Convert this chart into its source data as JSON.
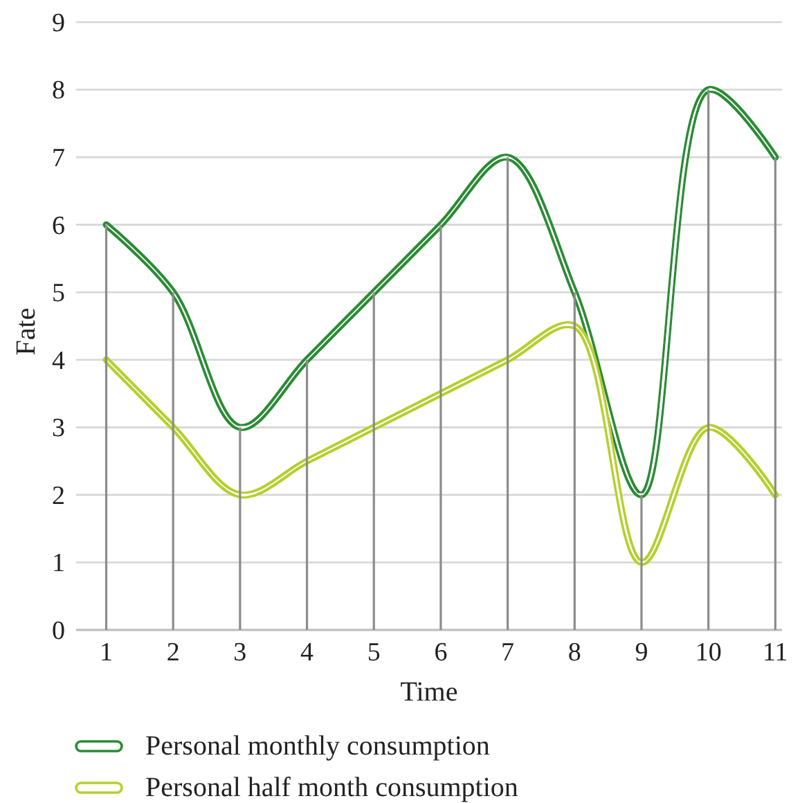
{
  "chart_data": {
    "type": "line",
    "xlabel": "Time",
    "ylabel": "Fate",
    "x": [
      1,
      2,
      3,
      4,
      5,
      6,
      7,
      8,
      9,
      10,
      11
    ],
    "xlim": [
      0.55,
      11.1
    ],
    "xticks": [
      1,
      2,
      3,
      4,
      5,
      6,
      7,
      8,
      9,
      10,
      11
    ],
    "ylim": [
      0,
      9
    ],
    "yticks": [
      0,
      1,
      2,
      3,
      4,
      5,
      6,
      7,
      8,
      9
    ],
    "grid": "y",
    "legend": "bottom",
    "series": [
      {
        "type": "bar",
        "color": "#8c8c8c",
        "values": [
          6,
          5,
          3,
          4,
          5,
          6,
          7,
          5,
          2,
          8,
          7
        ]
      },
      {
        "name": "Personal monthly consumption",
        "color": "#2a8c34",
        "values": [
          6,
          5,
          3,
          4,
          5,
          6,
          7,
          5,
          2,
          8,
          7
        ]
      },
      {
        "name": "Personal half month consumption",
        "color": "#b7cf2a",
        "values": [
          4,
          3,
          2,
          2.5,
          3,
          3.5,
          4,
          4.5,
          1,
          3,
          2
        ]
      }
    ]
  }
}
